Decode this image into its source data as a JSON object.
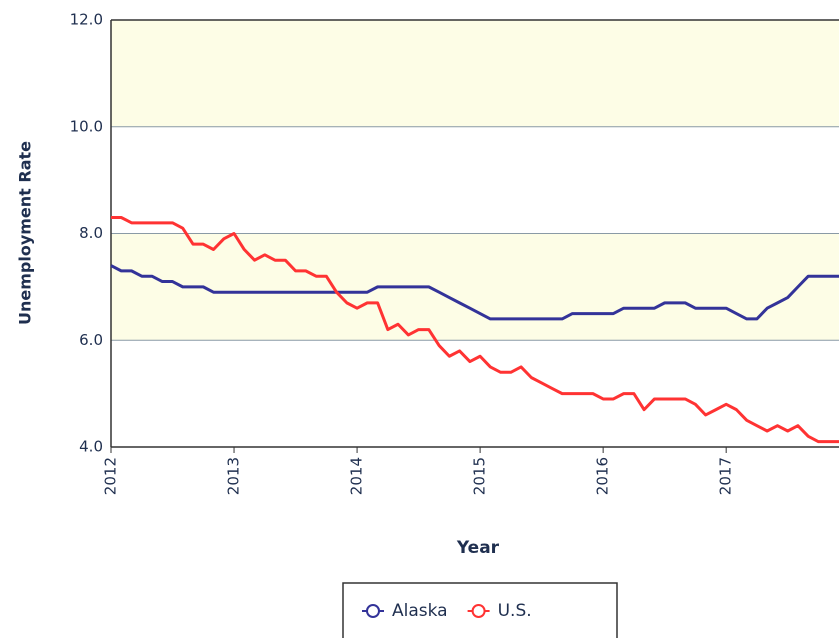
{
  "chart_data": {
    "type": "line",
    "x_label": "Year",
    "y_label": "Unemployment Rate",
    "x": [
      2012,
      2012.083,
      2012.167,
      2012.25,
      2012.333,
      2012.417,
      2012.5,
      2012.583,
      2012.667,
      2012.75,
      2012.833,
      2012.917,
      2013,
      2013.083,
      2013.167,
      2013.25,
      2013.333,
      2013.417,
      2013.5,
      2013.583,
      2013.667,
      2013.75,
      2013.833,
      2013.917,
      2014,
      2014.083,
      2014.167,
      2014.25,
      2014.333,
      2014.417,
      2014.5,
      2014.583,
      2014.667,
      2014.75,
      2014.833,
      2014.917,
      2015,
      2015.083,
      2015.167,
      2015.25,
      2015.333,
      2015.417,
      2015.5,
      2015.583,
      2015.667,
      2015.75,
      2015.833,
      2015.917,
      2016,
      2016.083,
      2016.167,
      2016.25,
      2016.333,
      2016.417,
      2016.5,
      2016.583,
      2016.667,
      2016.75,
      2016.833,
      2016.917,
      2017,
      2017.083,
      2017.167,
      2017.25,
      2017.333,
      2017.417,
      2017.5,
      2017.583,
      2017.667,
      2017.75,
      2017.833,
      2017.917
    ],
    "series": [
      {
        "name": "Alaska",
        "color": "#333399",
        "values": [
          7.4,
          7.3,
          7.3,
          7.2,
          7.2,
          7.1,
          7.1,
          7.0,
          7.0,
          7.0,
          6.9,
          6.9,
          6.9,
          6.9,
          6.9,
          6.9,
          6.9,
          6.9,
          6.9,
          6.9,
          6.9,
          6.9,
          6.9,
          6.9,
          6.9,
          6.9,
          7.0,
          7.0,
          7.0,
          7.0,
          7.0,
          7.0,
          6.9,
          6.8,
          6.7,
          6.6,
          6.5,
          6.4,
          6.4,
          6.4,
          6.4,
          6.4,
          6.4,
          6.4,
          6.4,
          6.5,
          6.5,
          6.5,
          6.5,
          6.5,
          6.6,
          6.6,
          6.6,
          6.6,
          6.7,
          6.7,
          6.7,
          6.6,
          6.6,
          6.6,
          6.6,
          6.5,
          6.4,
          6.4,
          6.6,
          6.7,
          6.8,
          7.0,
          7.2,
          7.2,
          7.2,
          7.2
        ]
      },
      {
        "name": "U.S.",
        "color": "#ff3333",
        "values": [
          8.3,
          8.3,
          8.2,
          8.2,
          8.2,
          8.2,
          8.2,
          8.1,
          7.8,
          7.8,
          7.7,
          7.9,
          8.0,
          7.7,
          7.5,
          7.6,
          7.5,
          7.5,
          7.3,
          7.3,
          7.2,
          7.2,
          6.9,
          6.7,
          6.6,
          6.7,
          6.7,
          6.2,
          6.3,
          6.1,
          6.2,
          6.2,
          5.9,
          5.7,
          5.8,
          5.6,
          5.7,
          5.5,
          5.4,
          5.4,
          5.5,
          5.3,
          5.2,
          5.1,
          5.0,
          5.0,
          5.0,
          5.0,
          4.9,
          4.9,
          5.0,
          5.0,
          4.7,
          4.9,
          4.9,
          4.9,
          4.9,
          4.8,
          4.6,
          4.7,
          4.8,
          4.7,
          4.5,
          4.4,
          4.3,
          4.4,
          4.3,
          4.4,
          4.2,
          4.1,
          4.1,
          4.1
        ]
      }
    ],
    "xlim": [
      2012,
      2017.917
    ],
    "xticks": [
      2012,
      2013,
      2014,
      2015,
      2016,
      2017
    ],
    "ylim": [
      4,
      12
    ],
    "yticks": [
      {
        "value": 4,
        "label": "4.0"
      },
      {
        "value": 6,
        "label": "6.0"
      },
      {
        "value": 8,
        "label": "8.0"
      },
      {
        "value": 10,
        "label": "10.0"
      },
      {
        "value": 12,
        "label": "12.0"
      }
    ],
    "grid": true,
    "band_color": "#fdfde6",
    "legend": "bottom"
  }
}
